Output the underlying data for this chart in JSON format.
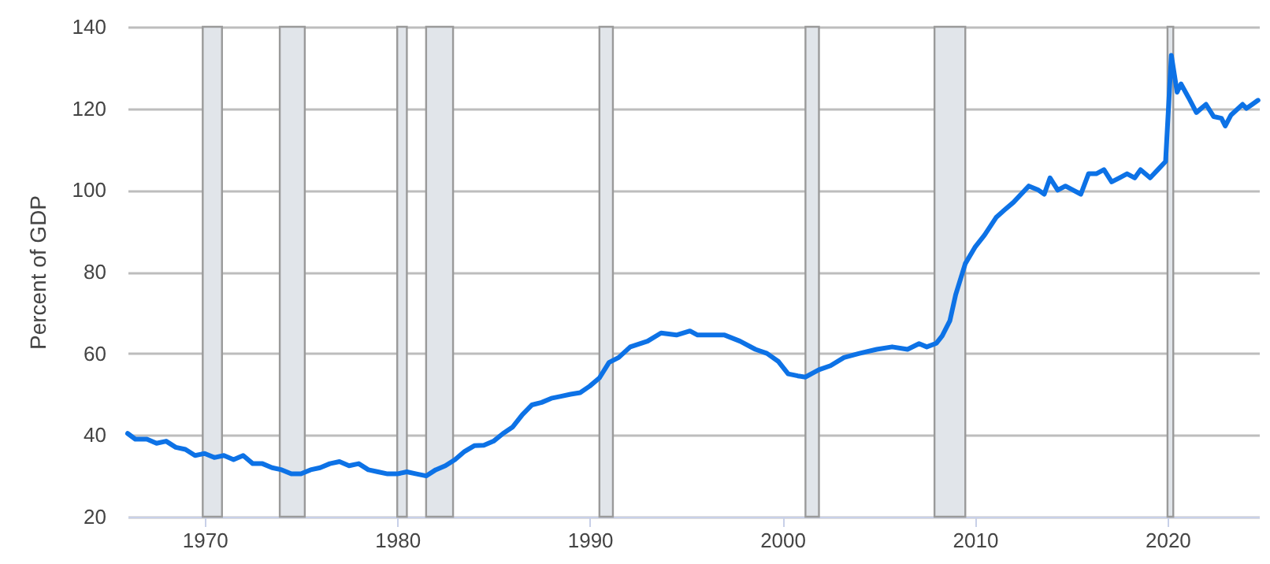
{
  "chart_data": {
    "type": "line",
    "ylabel": "Percent of GDP",
    "x": [
      1966.0,
      1966.4,
      1967.0,
      1967.5,
      1968.0,
      1968.5,
      1969.0,
      1969.5,
      1970.0,
      1970.5,
      1971.0,
      1971.5,
      1972.0,
      1972.5,
      1973.0,
      1973.5,
      1974.0,
      1974.5,
      1975.0,
      1975.5,
      1976.0,
      1976.5,
      1977.0,
      1977.5,
      1978.0,
      1978.5,
      1979.0,
      1979.5,
      1980.0,
      1980.5,
      1981.0,
      1981.5,
      1982.0,
      1982.5,
      1983.0,
      1983.5,
      1984.0,
      1984.5,
      1985.0,
      1985.5,
      1986.0,
      1986.5,
      1987.0,
      1987.5,
      1988.0,
      1988.5,
      1989.0,
      1989.5,
      1990.0,
      1990.5,
      1991.0,
      1991.5,
      1992.1,
      1993.0,
      1993.7,
      1994.5,
      1995.2,
      1995.6,
      1996.0,
      1997.0,
      1997.8,
      1998.6,
      1999.2,
      1999.8,
      2000.3,
      2000.8,
      2001.2,
      2001.5,
      2001.9,
      2002.5,
      2003.2,
      2004.0,
      2004.9,
      2005.7,
      2006.5,
      2007.1,
      2007.5,
      2008.0,
      2008.3,
      2008.7,
      2009.0,
      2009.5,
      2010.0,
      2010.5,
      2011.1,
      2011.5,
      2012.0,
      2012.8,
      2013.3,
      2013.6,
      2013.9,
      2014.3,
      2014.7,
      2015.1,
      2015.5,
      2015.9,
      2016.3,
      2016.7,
      2017.1,
      2017.5,
      2017.9,
      2018.3,
      2018.6,
      2019.1,
      2019.5,
      2019.9,
      2020.2,
      2020.5,
      2020.7,
      2021.1,
      2021.5,
      2022.0,
      2022.4,
      2022.8,
      2023.0,
      2023.3,
      2023.9,
      2024.1,
      2024.4,
      2024.7
    ],
    "series": [
      {
        "color": "#0d72e6",
        "values": [
          40.4,
          39,
          39,
          38,
          38.5,
          37,
          36.5,
          35,
          35.5,
          34.5,
          35,
          34,
          35,
          33,
          33,
          32,
          31.5,
          30.5,
          30.5,
          31.5,
          32,
          33,
          33.5,
          32.5,
          33,
          31.5,
          31,
          30.5,
          30.5,
          31,
          30.5,
          30,
          31.5,
          32.5,
          34,
          36,
          37.4,
          37.5,
          38.5,
          40.4,
          42,
          45,
          47.4,
          48,
          49,
          49.5,
          50,
          50.4,
          52,
          54,
          57.8,
          59,
          61.6,
          63,
          65,
          64.5,
          65.5,
          64.5,
          64.5,
          64.5,
          63,
          61,
          60,
          58,
          55,
          54.5,
          54.2,
          55,
          56,
          57,
          59,
          60,
          61,
          61.6,
          61,
          62.4,
          61.6,
          62.5,
          64.3,
          68,
          74.4,
          82,
          86,
          89,
          93.3,
          95,
          97,
          101,
          100,
          99,
          103,
          100,
          101,
          100,
          99,
          104,
          104,
          105,
          102,
          103,
          104,
          103,
          105,
          103,
          105,
          107,
          133,
          124,
          126,
          122.6,
          119,
          121,
          118,
          117.6,
          115.7,
          118.4,
          121,
          120,
          121,
          122
        ]
      }
    ],
    "xlim": [
      1966,
      2024.75
    ],
    "xticks": [
      1970,
      1980,
      1990,
      2000,
      2010,
      2020
    ],
    "ylim": [
      20,
      140
    ],
    "yticks": [
      20,
      40,
      60,
      80,
      100,
      120,
      140
    ],
    "grid": "y",
    "bands": [
      {
        "axis": "x",
        "from": 1969.9,
        "to": 1970.9,
        "color": "#e1e5ea"
      },
      {
        "axis": "x",
        "from": 1973.9,
        "to": 1975.2,
        "color": "#e1e5ea"
      },
      {
        "axis": "x",
        "from": 1980.0,
        "to": 1980.5,
        "color": "#e1e5ea"
      },
      {
        "axis": "x",
        "from": 1981.5,
        "to": 1982.9,
        "color": "#e1e5ea"
      },
      {
        "axis": "x",
        "from": 1990.5,
        "to": 1991.2,
        "color": "#e1e5ea"
      },
      {
        "axis": "x",
        "from": 2001.2,
        "to": 2001.9,
        "color": "#e1e5ea"
      },
      {
        "axis": "x",
        "from": 2007.9,
        "to": 2009.5,
        "color": "#e1e5ea"
      },
      {
        "axis": "x",
        "from": 2020.0,
        "to": 2020.3,
        "color": "#e1e5ea"
      }
    ]
  }
}
